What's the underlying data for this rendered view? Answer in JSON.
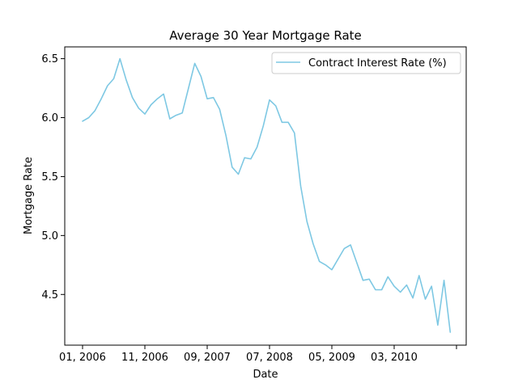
{
  "chart_data": {
    "type": "line",
    "title": "Average 30 Year Mortgage Rate",
    "xlabel": "Date",
    "ylabel": "Mortgage Rate",
    "x_tick_labels": [
      "01, 2006",
      "11, 2006",
      "09, 2007",
      "07, 2008",
      "05, 2009",
      "03, 2010",
      ""
    ],
    "y_ticks": [
      4.5,
      5.0,
      5.5,
      6.0,
      6.5
    ],
    "y_tick_labels": [
      "4.5",
      "5.0",
      "5.5",
      "6.0",
      "6.5"
    ],
    "ylim": [
      4.07,
      6.6
    ],
    "grid": false,
    "legend_position": "top-right",
    "series": [
      {
        "name": "Contract Interest Rate (%)",
        "color": "#7ec8e3",
        "values": [
          5.97,
          6.0,
          6.06,
          6.16,
          6.27,
          6.33,
          6.5,
          6.32,
          6.17,
          6.08,
          6.03,
          6.11,
          6.16,
          6.2,
          5.99,
          6.02,
          6.04,
          6.25,
          6.46,
          6.35,
          6.16,
          6.17,
          6.07,
          5.85,
          5.58,
          5.52,
          5.66,
          5.65,
          5.75,
          5.93,
          6.15,
          6.1,
          5.96,
          5.96,
          5.87,
          5.42,
          5.12,
          4.93,
          4.78,
          4.75,
          4.71,
          4.8,
          4.89,
          4.92,
          4.77,
          4.62,
          4.63,
          4.54,
          4.54,
          4.65,
          4.57,
          4.52,
          4.58,
          4.47,
          4.66,
          4.46,
          4.57,
          4.24,
          4.62,
          4.18
        ]
      }
    ]
  }
}
